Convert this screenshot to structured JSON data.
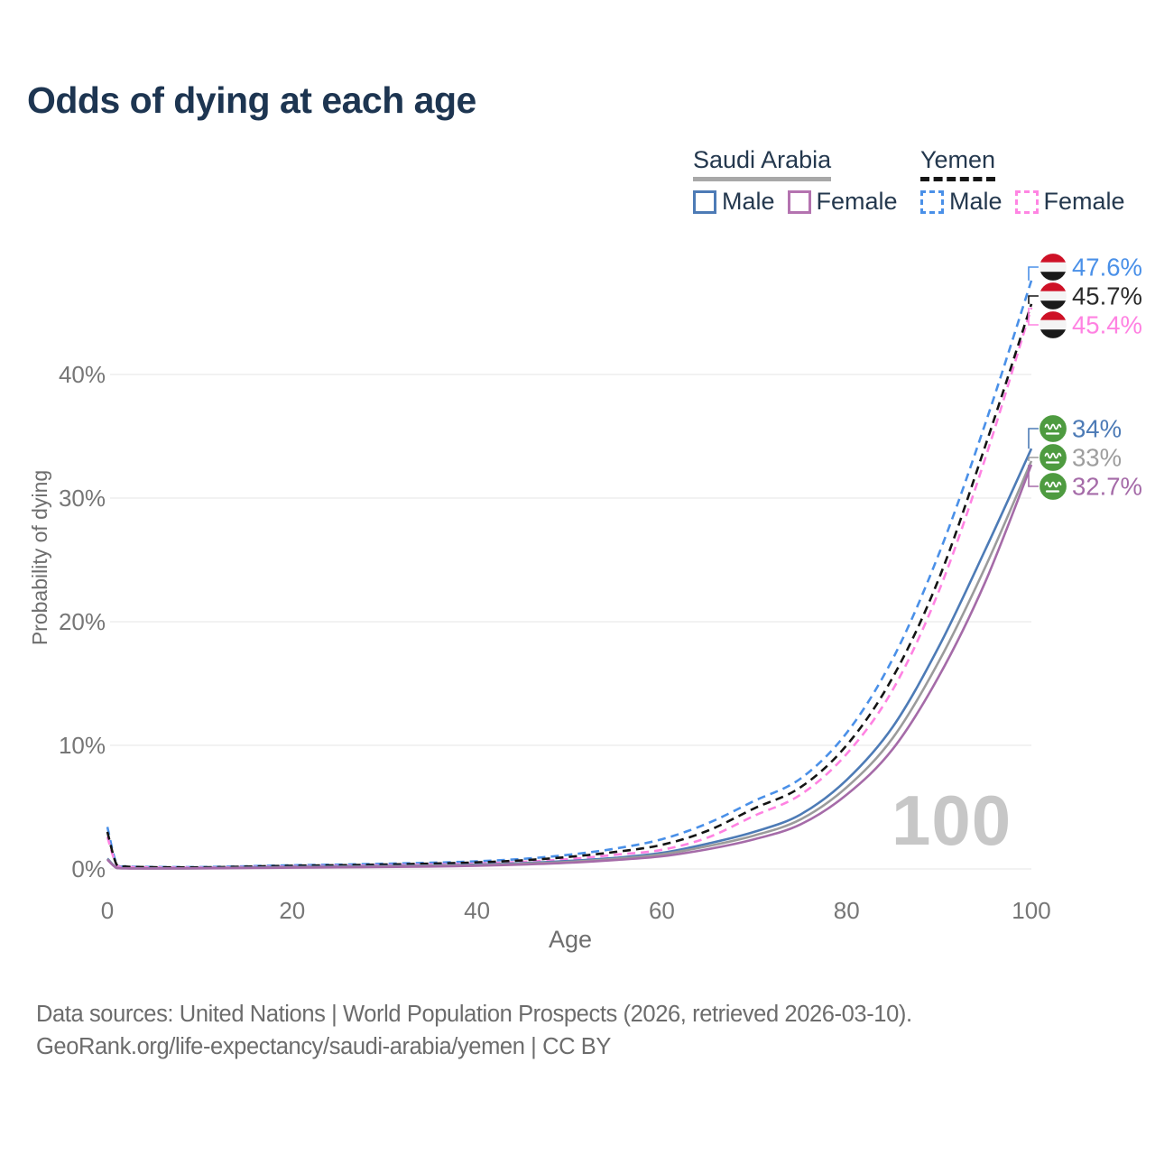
{
  "header": {
    "title": "Odds of dying at each age"
  },
  "legend": {
    "groups": [
      {
        "name": "Saudi Arabia",
        "line_style": "solid",
        "underline_color": "#a8a8a8",
        "items": [
          {
            "label": "Male",
            "color": "#4d7bb6"
          },
          {
            "label": "Female",
            "color": "#b473b0"
          }
        ]
      },
      {
        "name": "Yemen",
        "line_style": "dashed",
        "underline_color": "#161616",
        "items": [
          {
            "label": "Male",
            "color": "#4a90e8"
          },
          {
            "label": "Female",
            "color": "#ff85e3"
          }
        ]
      }
    ]
  },
  "chart_data": {
    "type": "line",
    "title": "Odds of dying at each age",
    "xlabel": "Age",
    "ylabel": "Probability of dying",
    "xlim": [
      0,
      100
    ],
    "ylim": [
      0,
      48
    ],
    "grid": "horizontal-light",
    "grid_color": "#ededed",
    "tick_color": "#767676",
    "watermark": "100",
    "x_ticks": [
      {
        "value": 0,
        "label": "0"
      },
      {
        "value": 20,
        "label": "20"
      },
      {
        "value": 40,
        "label": "40"
      },
      {
        "value": 60,
        "label": "60"
      },
      {
        "value": 80,
        "label": "80"
      },
      {
        "value": 100,
        "label": "100"
      }
    ],
    "y_ticks": [
      {
        "value": 0,
        "label": "0%"
      },
      {
        "value": 10,
        "label": "10%"
      },
      {
        "value": 20,
        "label": "20%"
      },
      {
        "value": 30,
        "label": "30%"
      },
      {
        "value": 40,
        "label": "40%"
      }
    ],
    "ages": [
      0,
      1,
      2,
      3,
      5,
      10,
      15,
      20,
      25,
      30,
      35,
      40,
      45,
      50,
      55,
      60,
      65,
      70,
      75,
      80,
      85,
      90,
      95,
      100
    ],
    "series": [
      {
        "id": "yemen-male",
        "country": "Yemen",
        "sex": "Male",
        "color": "#4a90e8",
        "label_color": "#4a90e8",
        "dashed": true,
        "flag": "yemen",
        "end_label": "47.6%",
        "end_value": 47.6,
        "values": [
          3.4,
          0.4,
          0.22,
          0.18,
          0.16,
          0.15,
          0.22,
          0.3,
          0.35,
          0.42,
          0.5,
          0.62,
          0.82,
          1.15,
          1.65,
          2.4,
          3.7,
          5.5,
          7.3,
          11.0,
          17.0,
          25.5,
          36.0,
          47.6
        ]
      },
      {
        "id": "yemen-both",
        "country": "Yemen",
        "sex": "Both sexes",
        "color": "#141414",
        "label_color": "#2b2b2b",
        "dashed": true,
        "flag": "yemen",
        "end_label": "45.7%",
        "end_value": 45.7,
        "values": [
          3.0,
          0.36,
          0.2,
          0.16,
          0.14,
          0.13,
          0.19,
          0.26,
          0.3,
          0.36,
          0.43,
          0.53,
          0.7,
          0.98,
          1.38,
          1.95,
          3.1,
          4.9,
          6.6,
          10.0,
          15.5,
          23.5,
          34.2,
          45.7
        ]
      },
      {
        "id": "yemen-female",
        "country": "Yemen",
        "sex": "Female",
        "color": "#ff82e2",
        "label_color": "#ff82e2",
        "dashed": true,
        "flag": "yemen",
        "end_label": "45.4%",
        "end_value": 45.4,
        "values": [
          2.6,
          0.32,
          0.18,
          0.14,
          0.12,
          0.11,
          0.15,
          0.21,
          0.25,
          0.3,
          0.36,
          0.44,
          0.58,
          0.8,
          1.15,
          1.55,
          2.55,
          4.3,
          6.0,
          9.3,
          14.5,
          22.5,
          33.2,
          45.4
        ]
      },
      {
        "id": "saudi-male",
        "country": "Saudi Arabia",
        "sex": "Male",
        "color": "#4d7bb6",
        "label_color": "#4d7bb6",
        "dashed": false,
        "flag": "saudi",
        "end_label": "34%",
        "end_value": 34,
        "values": [
          0.85,
          0.09,
          0.06,
          0.05,
          0.05,
          0.06,
          0.11,
          0.16,
          0.19,
          0.23,
          0.28,
          0.35,
          0.47,
          0.65,
          0.9,
          1.3,
          2.05,
          3.0,
          4.4,
          7.2,
          11.5,
          18.0,
          25.8,
          34.0
        ]
      },
      {
        "id": "saudi-both",
        "country": "Saudi Arabia",
        "sex": "Both sexes",
        "color": "#9b9b9b",
        "label_color": "#9e9e9e",
        "dashed": false,
        "flag": "saudi",
        "end_label": "33%",
        "end_value": 33,
        "values": [
          0.8,
          0.08,
          0.05,
          0.05,
          0.04,
          0.05,
          0.09,
          0.13,
          0.16,
          0.2,
          0.25,
          0.31,
          0.42,
          0.58,
          0.82,
          1.18,
          1.85,
          2.7,
          4.0,
          6.6,
          10.6,
          16.8,
          24.4,
          33.0
        ]
      },
      {
        "id": "saudi-female",
        "country": "Saudi Arabia",
        "sex": "Female",
        "color": "#a56ba8",
        "label_color": "#a56ba8",
        "dashed": false,
        "flag": "saudi",
        "end_label": "32.7%",
        "end_value": 32.7,
        "values": [
          0.75,
          0.08,
          0.05,
          0.04,
          0.04,
          0.05,
          0.07,
          0.1,
          0.13,
          0.16,
          0.2,
          0.26,
          0.36,
          0.5,
          0.72,
          1.02,
          1.6,
          2.4,
          3.6,
          6.0,
          9.7,
          15.6,
          23.2,
          32.7
        ]
      }
    ],
    "flag_colors": {
      "yemen_red": "#ce1126",
      "yemen_white": "#f4f4f4",
      "yemen_black": "#1a1a1a",
      "saudi_green": "#4e9b40"
    }
  },
  "footer": {
    "line1": "Data sources: United Nations | World Population Prospects (2026, retrieved 2026-03-10).",
    "line2": "GeoRank.org/life-expectancy/saudi-arabia/yemen | CC BY"
  }
}
